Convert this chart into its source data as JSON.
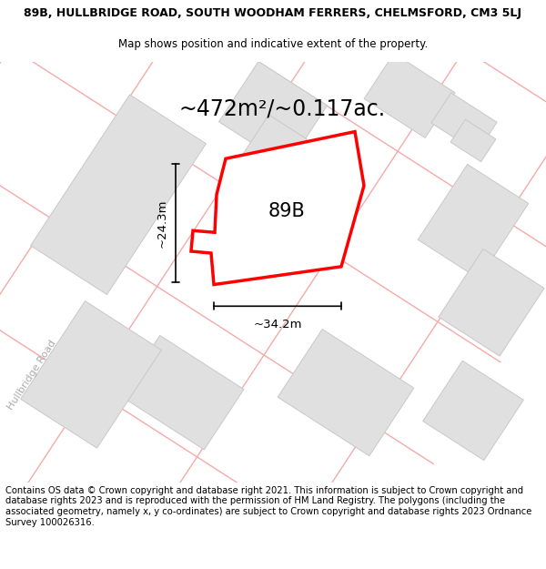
{
  "title_line1": "89B, HULLBRIDGE ROAD, SOUTH WOODHAM FERRERS, CHELMSFORD, CM3 5LJ",
  "title_line2": "Map shows position and indicative extent of the property.",
  "area_text": "~472m²/~0.117ac.",
  "label_89B": "89B",
  "dim_height": "~24.3m",
  "dim_width": "~34.2m",
  "road_label": "Hullbridge Road",
  "footer_text": "Contains OS data © Crown copyright and database right 2021. This information is subject to Crown copyright and database rights 2023 and is reproduced with the permission of HM Land Registry. The polygons (including the associated geometry, namely x, y co-ordinates) are subject to Crown copyright and database rights 2023 Ordnance Survey 100026316.",
  "map_bg": "#ffffff",
  "building_fill": "#e0e0e0",
  "building_edge": "#c8c8c8",
  "road_color": "#f5aaaa",
  "highlight_fill": "#ffffff",
  "highlight_edge": "#ff0000",
  "title_fontsize": 9.0,
  "subtitle_fontsize": 8.5,
  "area_fontsize": 17,
  "label_fontsize": 15,
  "dim_fontsize": 9.5,
  "footer_fontsize": 7.2,
  "road_label_fontsize": 8,
  "road_label_color": "#aaaaaa"
}
